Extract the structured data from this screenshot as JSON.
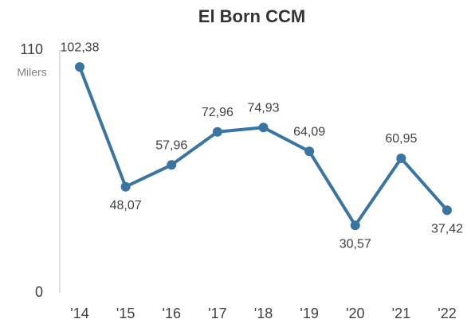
{
  "chart_data": {
    "type": "line",
    "title": "El Born CCM",
    "y_label": "Milers",
    "categories": [
      "'14",
      "'15",
      "'16",
      "'17",
      "'18",
      "'19",
      "'20",
      "'21",
      "'22"
    ],
    "series": [
      {
        "name": "El Born CCM",
        "color": "#3a74a0",
        "values": [
          102.38,
          48.07,
          57.96,
          72.96,
          74.93,
          64.09,
          30.57,
          60.95,
          37.42
        ],
        "value_labels": [
          "102,38",
          "48,07",
          "57,96",
          "72,96",
          "74,93",
          "64,09",
          "30,57",
          "60,95",
          "37,42"
        ]
      }
    ],
    "ylim": [
      0,
      110
    ],
    "yticks": [
      0,
      110
    ],
    "grid": false
  }
}
